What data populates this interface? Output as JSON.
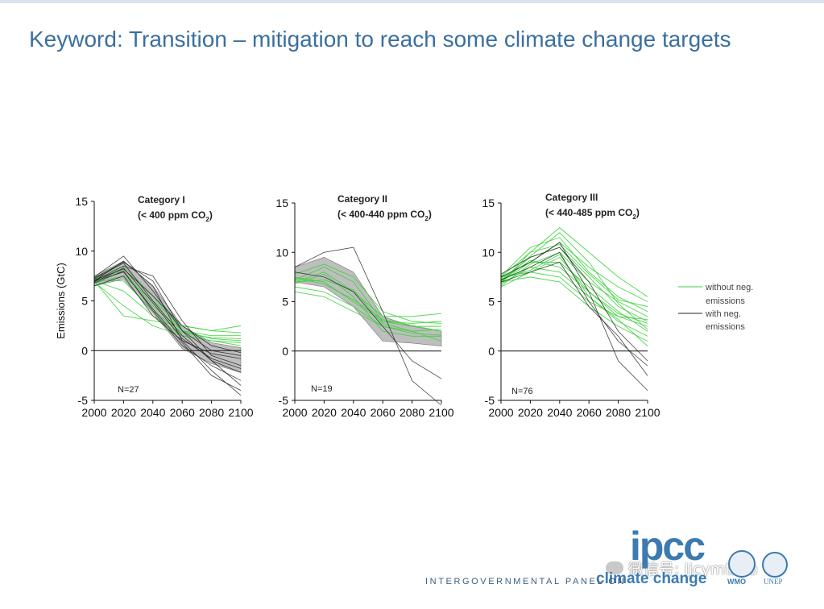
{
  "slide": {
    "title": "Keyword: Transition – mitigation to reach some climate change targets"
  },
  "colors": {
    "green": "#3cd23c",
    "black": "#222222",
    "band": "#a8a8a8",
    "title": "#3a6fa0"
  },
  "legend": {
    "green_line1": "without neg.",
    "green_line2": "emissions",
    "black_line1": "with neg.",
    "black_line2": "emissions"
  },
  "chart_data": [
    {
      "type": "line",
      "title_line1": "Category I",
      "title_line2": "(< 400 ppm CO",
      "title_sub": "2",
      "title_close": ")",
      "ylabel": "Emissions (GtC)",
      "xlabel": "",
      "n_label": "N=27",
      "x": [
        2000,
        2020,
        2040,
        2060,
        2080,
        2100
      ],
      "xlim": [
        2000,
        2100
      ],
      "ylim": [
        -5,
        15
      ],
      "xticks": [
        "2000",
        "2020",
        "2040",
        "2060",
        "2080",
        "2100"
      ],
      "yticks": [
        "15",
        "10",
        "5",
        "0",
        "-5"
      ],
      "band_upper": [
        7.5,
        9.0,
        6.5,
        2.5,
        0.8,
        0.3
      ],
      "band_lower": [
        6.5,
        7.2,
        3.8,
        0.2,
        -1.3,
        -2.2
      ],
      "series": [
        {
          "group": "black",
          "values": [
            7.0,
            9.0,
            6.5,
            1.0,
            -2.0,
            -4.5
          ]
        },
        {
          "group": "black",
          "values": [
            7.2,
            8.8,
            5.0,
            1.5,
            -1.0,
            -3.5
          ]
        },
        {
          "group": "black",
          "values": [
            6.8,
            8.0,
            4.0,
            0.5,
            -1.5,
            -3.0
          ]
        },
        {
          "group": "black",
          "values": [
            7.0,
            8.5,
            7.5,
            3.0,
            -0.5,
            -1.5
          ]
        },
        {
          "group": "black",
          "values": [
            7.4,
            9.5,
            6.0,
            2.0,
            0.0,
            -0.5
          ]
        },
        {
          "group": "black",
          "values": [
            6.5,
            7.5,
            3.5,
            1.0,
            -0.3,
            -0.8
          ]
        },
        {
          "group": "black",
          "values": [
            7.1,
            8.2,
            5.5,
            2.5,
            0.5,
            -0.2
          ]
        },
        {
          "group": "black",
          "values": [
            7.3,
            8.9,
            7.0,
            2.0,
            -1.0,
            -2.2
          ]
        },
        {
          "group": "black",
          "values": [
            6.9,
            8.3,
            4.8,
            1.2,
            -0.8,
            -1.8
          ]
        },
        {
          "group": "black",
          "values": [
            7.0,
            7.9,
            4.2,
            0.8,
            -2.5,
            -4.0
          ]
        },
        {
          "group": "green",
          "values": [
            7.0,
            3.5,
            3.0,
            2.5,
            2.0,
            1.8
          ]
        },
        {
          "group": "green",
          "values": [
            7.2,
            8.0,
            4.5,
            2.0,
            1.2,
            1.0
          ]
        },
        {
          "group": "green",
          "values": [
            6.8,
            7.5,
            5.0,
            2.5,
            2.0,
            2.5
          ]
        },
        {
          "group": "green",
          "values": [
            7.0,
            6.0,
            3.5,
            1.5,
            1.0,
            0.8
          ]
        },
        {
          "group": "green",
          "values": [
            7.3,
            8.5,
            5.5,
            2.0,
            1.5,
            1.5
          ]
        },
        {
          "group": "green",
          "values": [
            6.9,
            4.5,
            2.5,
            1.5,
            1.0,
            0.5
          ]
        },
        {
          "group": "green",
          "values": [
            7.1,
            7.0,
            4.0,
            1.8,
            1.3,
            1.2
          ]
        }
      ]
    },
    {
      "type": "line",
      "title_line1": "Category II",
      "title_line2": "(< 400-440 ppm CO",
      "title_sub": "2",
      "title_close": ")",
      "ylabel": "",
      "xlabel": "",
      "n_label": "N=19",
      "x": [
        2000,
        2020,
        2040,
        2060,
        2080,
        2100
      ],
      "xlim": [
        2000,
        2100
      ],
      "ylim": [
        -5,
        15
      ],
      "xticks": [
        "2000",
        "2020",
        "2040",
        "2060",
        "2080",
        "2100"
      ],
      "yticks": [
        "15",
        "10",
        "5",
        "0",
        "-5"
      ],
      "band_upper": [
        8.5,
        9.5,
        8.0,
        3.5,
        2.5,
        2.0
      ],
      "band_lower": [
        7.0,
        6.5,
        4.5,
        1.0,
        0.8,
        0.5
      ],
      "series": [
        {
          "group": "black",
          "values": [
            8.5,
            10.0,
            10.5,
            4.0,
            -3.0,
            -5.5
          ]
        },
        {
          "group": "black",
          "values": [
            8.0,
            7.5,
            6.0,
            2.5,
            -1.0,
            -2.8
          ]
        },
        {
          "group": "green",
          "values": [
            7.0,
            8.0,
            6.0,
            3.5,
            3.5,
            3.8
          ]
        },
        {
          "group": "green",
          "values": [
            7.5,
            7.0,
            5.0,
            3.0,
            2.8,
            3.0
          ]
        },
        {
          "group": "green",
          "values": [
            6.5,
            6.0,
            4.5,
            2.5,
            2.0,
            2.2
          ]
        },
        {
          "group": "green",
          "values": [
            7.2,
            8.5,
            7.0,
            3.0,
            2.5,
            2.5
          ]
        },
        {
          "group": "green",
          "values": [
            6.8,
            7.8,
            5.5,
            2.0,
            1.5,
            1.5
          ]
        },
        {
          "group": "green",
          "values": [
            7.8,
            8.8,
            7.5,
            4.0,
            3.0,
            2.8
          ]
        },
        {
          "group": "green",
          "values": [
            6.0,
            5.5,
            4.0,
            2.5,
            1.8,
            1.6
          ]
        },
        {
          "group": "green",
          "values": [
            7.4,
            6.8,
            5.2,
            3.2,
            2.6,
            2.0
          ]
        },
        {
          "group": "green",
          "values": [
            7.0,
            7.2,
            6.2,
            2.8,
            2.0,
            1.0
          ]
        }
      ]
    },
    {
      "type": "line",
      "title_line1": "Category III",
      "title_line2": "(< 440-485 ppm CO",
      "title_sub": "2",
      "title_close": ")",
      "ylabel": "",
      "xlabel": "",
      "n_label": "N=76",
      "x": [
        2000,
        2020,
        2040,
        2060,
        2080,
        2100
      ],
      "xlim": [
        2000,
        2100
      ],
      "ylim": [
        -5,
        15
      ],
      "xticks": [
        "2000",
        "2020",
        "2040",
        "2060",
        "2080",
        "2100"
      ],
      "yticks": [
        "15",
        "10",
        "5",
        "0",
        "-5"
      ],
      "band_upper": [],
      "band_lower": [],
      "series": [
        {
          "group": "black",
          "values": [
            7.5,
            9.0,
            11.0,
            6.0,
            -1.0,
            -4.0
          ]
        },
        {
          "group": "black",
          "values": [
            7.2,
            8.5,
            10.0,
            5.0,
            1.0,
            -1.5
          ]
        },
        {
          "group": "black",
          "values": [
            7.0,
            8.0,
            9.0,
            4.5,
            1.5,
            -2.5
          ]
        },
        {
          "group": "black",
          "values": [
            7.8,
            9.5,
            10.5,
            7.0,
            2.0,
            -1.0
          ]
        },
        {
          "group": "green",
          "values": [
            7.0,
            9.0,
            11.0,
            8.5,
            6.5,
            5.0
          ]
        },
        {
          "group": "green",
          "values": [
            7.5,
            10.0,
            12.5,
            10.0,
            7.5,
            5.5
          ]
        },
        {
          "group": "green",
          "values": [
            6.5,
            8.0,
            9.5,
            6.0,
            3.5,
            2.5
          ]
        },
        {
          "group": "green",
          "values": [
            7.2,
            9.5,
            10.5,
            7.5,
            4.5,
            3.0
          ]
        },
        {
          "group": "green",
          "values": [
            6.8,
            8.5,
            8.0,
            5.5,
            3.0,
            1.5
          ]
        },
        {
          "group": "green",
          "values": [
            7.4,
            9.0,
            9.0,
            6.5,
            4.0,
            2.0
          ]
        },
        {
          "group": "green",
          "values": [
            7.0,
            7.5,
            7.0,
            4.5,
            2.5,
            1.0
          ]
        },
        {
          "group": "green",
          "values": [
            7.6,
            10.5,
            11.5,
            8.0,
            5.5,
            4.0
          ]
        },
        {
          "group": "green",
          "values": [
            6.6,
            8.8,
            10.0,
            7.0,
            5.0,
            3.5
          ]
        },
        {
          "group": "green",
          "values": [
            7.1,
            9.2,
            8.5,
            6.0,
            3.8,
            2.8
          ]
        },
        {
          "group": "green",
          "values": [
            7.3,
            8.2,
            9.8,
            5.5,
            3.2,
            0.5
          ]
        },
        {
          "group": "green",
          "values": [
            6.9,
            10.0,
            10.8,
            7.8,
            5.2,
            4.5
          ]
        },
        {
          "group": "green",
          "values": [
            7.0,
            9.6,
            12.0,
            9.0,
            4.8,
            2.2
          ]
        },
        {
          "group": "green",
          "values": [
            7.5,
            8.0,
            7.5,
            5.0,
            3.5,
            3.2
          ]
        }
      ]
    }
  ],
  "footer": {
    "org": "INTERGOVERNMENTAL PANEL ON",
    "logo_top": "ipcc",
    "logo_bottom": "climate change",
    "wmo": "WMO",
    "unep": "UNEP",
    "watermark": "微信号: ljcymtsyb",
    "watermark_icon": "wechat-icon"
  }
}
